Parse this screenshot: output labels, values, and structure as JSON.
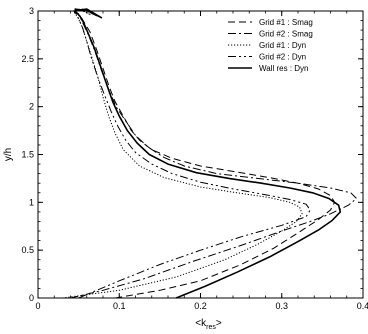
{
  "chart_data": {
    "type": "line",
    "xlabel": "<k",
    "xlabel_sub": "res",
    "xlabel_close": ">",
    "ylabel": "y/h",
    "xlim": [
      0,
      0.4
    ],
    "ylim": [
      0,
      3
    ],
    "xticks": [
      0,
      0.1,
      0.2,
      0.3,
      0.4
    ],
    "xtick_labels": [
      "0",
      "0.1",
      "0.2",
      "0.3",
      "0.4"
    ],
    "yticks": [
      0,
      0.5,
      1,
      1.5,
      2,
      2.5,
      3
    ],
    "ytick_labels": [
      "0",
      "0.5",
      "1",
      "1.5",
      "2",
      "2.5",
      "3"
    ],
    "grid": false,
    "legend_position": "top-right",
    "series": [
      {
        "name": "Grid #1 : Smag",
        "dash": "7,4",
        "width": 1,
        "x": [
          0.095,
          0.15,
          0.2,
          0.25,
          0.29,
          0.32,
          0.345,
          0.36,
          0.365,
          0.36,
          0.345,
          0.32,
          0.29,
          0.25,
          0.2,
          0.165,
          0.14,
          0.125,
          0.115,
          0.105,
          0.095,
          0.088,
          0.08,
          0.072,
          0.064,
          0.057,
          0.052,
          0.05,
          0.045,
          0.055,
          0.068,
          0.058,
          0.045
        ],
        "y": [
          0.0,
          0.08,
          0.18,
          0.35,
          0.52,
          0.68,
          0.82,
          0.92,
          1.0,
          1.07,
          1.14,
          1.2,
          1.25,
          1.31,
          1.38,
          1.46,
          1.55,
          1.65,
          1.75,
          1.9,
          2.05,
          2.2,
          2.4,
          2.6,
          2.78,
          2.88,
          2.95,
          2.97,
          3.0,
          3.02,
          2.97,
          3.01,
          3.02
        ]
      },
      {
        "name": "Grid #2 : Smag",
        "dash": "8,3,2,3",
        "width": 1,
        "x": [
          0.04,
          0.08,
          0.13,
          0.19,
          0.25,
          0.3,
          0.335,
          0.36,
          0.382,
          0.392,
          0.385,
          0.36,
          0.32,
          0.27,
          0.22,
          0.18,
          0.155,
          0.135,
          0.12,
          0.108,
          0.096,
          0.087,
          0.078,
          0.07,
          0.062,
          0.056,
          0.052,
          0.049,
          0.045,
          0.058,
          0.075,
          0.063,
          0.045
        ],
        "y": [
          0.0,
          0.08,
          0.2,
          0.38,
          0.55,
          0.7,
          0.8,
          0.88,
          0.97,
          1.04,
          1.1,
          1.15,
          1.2,
          1.25,
          1.3,
          1.38,
          1.47,
          1.58,
          1.7,
          1.85,
          2.0,
          2.18,
          2.38,
          2.58,
          2.75,
          2.86,
          2.93,
          2.97,
          3.0,
          3.02,
          2.94,
          3.0,
          3.02
        ]
      },
      {
        "name": "Grid #1 : Dyn",
        "dash": "1.2,1.8",
        "width": 1,
        "x": [
          0.03,
          0.1,
          0.17,
          0.23,
          0.27,
          0.3,
          0.318,
          0.325,
          0.322,
          0.31,
          0.285,
          0.245,
          0.2,
          0.155,
          0.125,
          0.105,
          0.095,
          0.087,
          0.08,
          0.074,
          0.067,
          0.06,
          0.055,
          0.05,
          0.046,
          0.043,
          0.052,
          0.065,
          0.055,
          0.045
        ],
        "y": [
          0.0,
          0.08,
          0.22,
          0.4,
          0.56,
          0.7,
          0.8,
          0.88,
          0.95,
          1.0,
          1.05,
          1.1,
          1.16,
          1.26,
          1.38,
          1.55,
          1.72,
          1.9,
          2.1,
          2.3,
          2.5,
          2.68,
          2.82,
          2.92,
          2.97,
          3.0,
          3.02,
          2.96,
          3.0,
          3.02
        ]
      },
      {
        "name": "Grid #2 : Dyn",
        "dash": "8,3,2,3,2,3",
        "width": 1,
        "x": [
          0.05,
          0.1,
          0.15,
          0.2,
          0.25,
          0.3,
          0.33,
          0.335,
          0.33,
          0.31,
          0.28,
          0.24,
          0.2,
          0.165,
          0.14,
          0.12,
          0.108,
          0.098,
          0.09,
          0.082,
          0.074,
          0.066,
          0.06,
          0.055,
          0.05,
          0.047,
          0.044,
          0.056,
          0.072,
          0.06,
          0.045
        ],
        "y": [
          0.0,
          0.18,
          0.35,
          0.5,
          0.64,
          0.76,
          0.85,
          0.92,
          0.98,
          1.03,
          1.08,
          1.14,
          1.21,
          1.3,
          1.4,
          1.52,
          1.65,
          1.8,
          1.95,
          2.12,
          2.3,
          2.5,
          2.68,
          2.82,
          2.92,
          2.97,
          3.0,
          3.02,
          2.95,
          3.0,
          3.02
        ]
      },
      {
        "name": "Wall res : Dyn",
        "dash": "",
        "width": 1.6,
        "x": [
          0.17,
          0.205,
          0.245,
          0.285,
          0.32,
          0.345,
          0.362,
          0.372,
          0.37,
          0.358,
          0.338,
          0.31,
          0.275,
          0.235,
          0.195,
          0.16,
          0.137,
          0.122,
          0.11,
          0.1,
          0.092,
          0.085,
          0.077,
          0.069,
          0.061,
          0.056,
          0.052,
          0.049,
          0.045,
          0.06,
          0.078,
          0.063,
          0.045
        ],
        "y": [
          0.0,
          0.12,
          0.27,
          0.43,
          0.59,
          0.71,
          0.81,
          0.9,
          0.97,
          1.04,
          1.1,
          1.15,
          1.2,
          1.25,
          1.31,
          1.4,
          1.5,
          1.62,
          1.75,
          1.9,
          2.05,
          2.22,
          2.42,
          2.62,
          2.78,
          2.88,
          2.94,
          2.97,
          3.0,
          3.02,
          2.93,
          3.0,
          3.02
        ]
      }
    ]
  }
}
